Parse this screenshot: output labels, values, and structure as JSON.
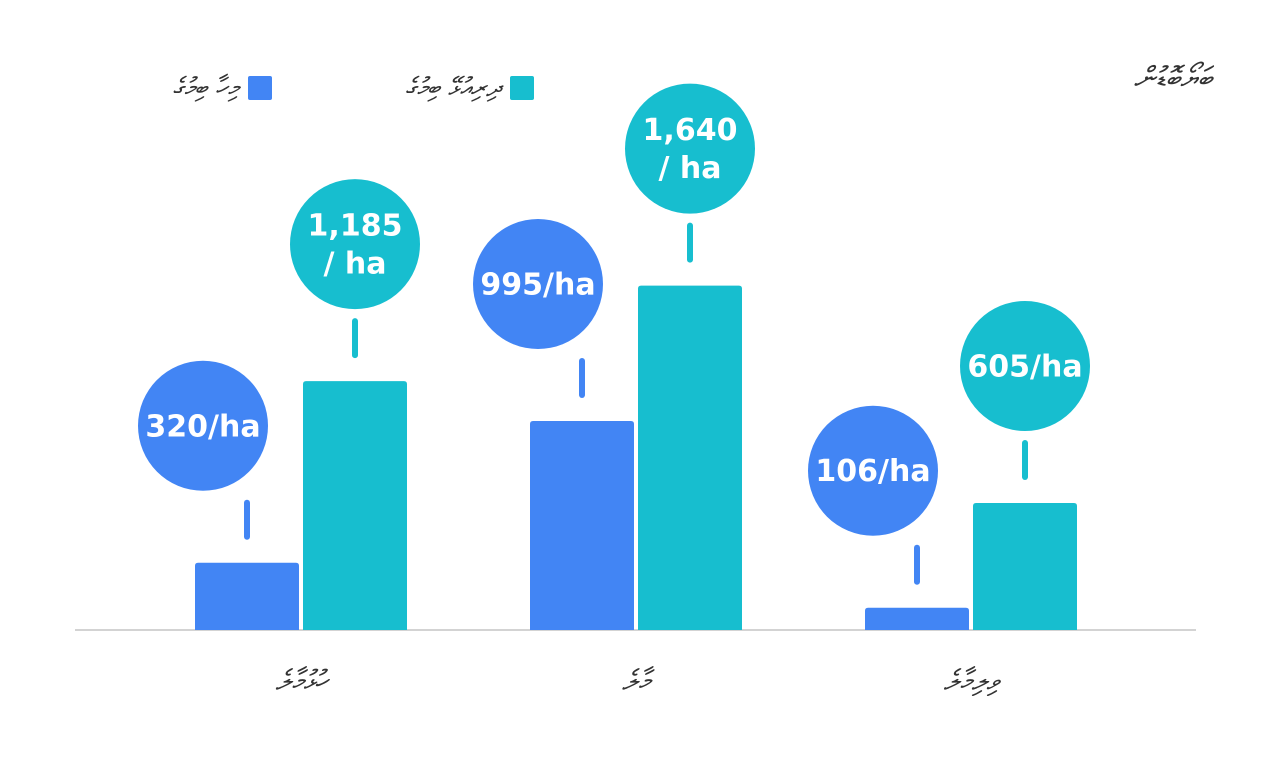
{
  "chart_data": {
    "type": "bar",
    "title": "ބަޔޯބޮޑުން",
    "categories": [
      "ހުޅުމާލެ",
      "މާލެ",
      "ވިލިމާލެ"
    ],
    "series": [
      {
        "name": "މިހާ ބިމުގެ",
        "color": "#4285f4",
        "values": [
          320,
          995,
          106
        ],
        "labels": [
          [
            "320/ha"
          ],
          [
            "995/ha"
          ],
          [
            "106/ha"
          ]
        ]
      },
      {
        "name": "ދިރިއުޅޭ ބިމުގެ",
        "color": "#17becf",
        "values": [
          1185,
          1640,
          605
        ],
        "labels": [
          [
            "1,185",
            "/ ha"
          ],
          [
            "1,640",
            "/ ha"
          ],
          [
            "605/ha"
          ]
        ]
      }
    ],
    "legend_position": "top-left",
    "grid": false
  }
}
